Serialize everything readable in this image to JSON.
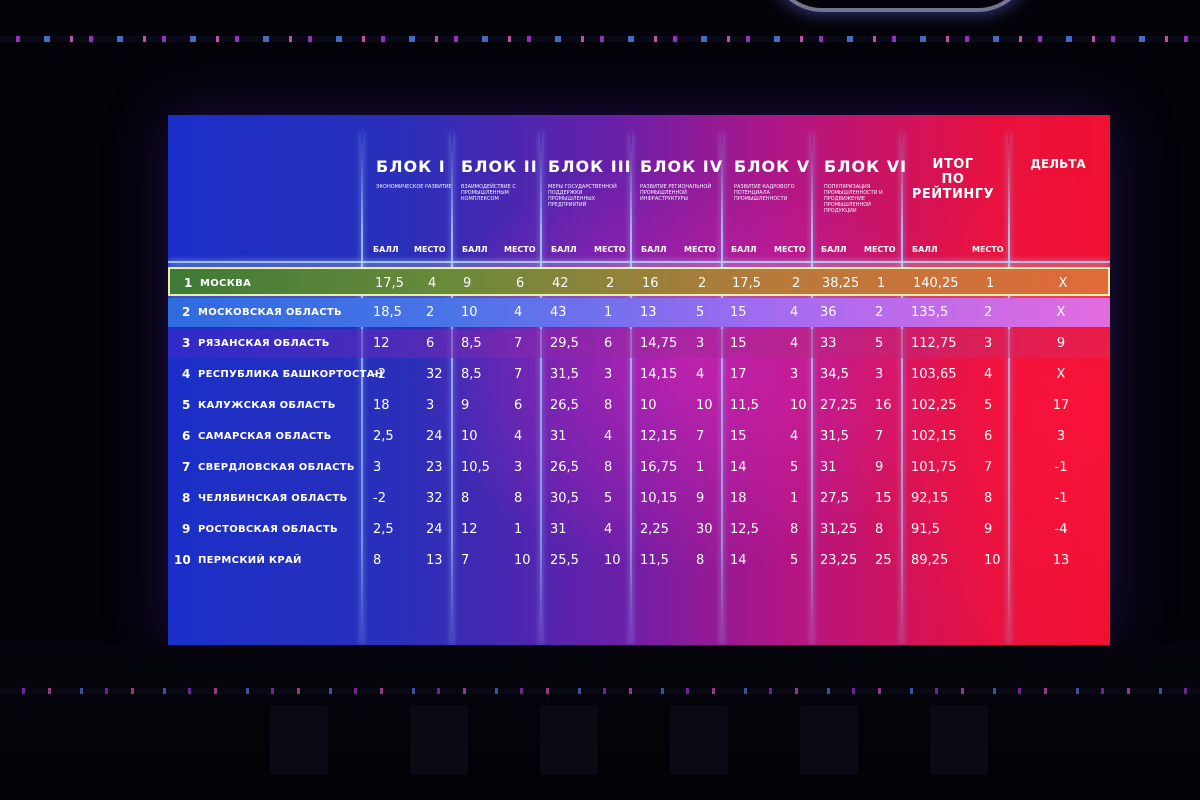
{
  "blocks": [
    {
      "title": "БЛОК I",
      "subtitle": "Экономическое развитие"
    },
    {
      "title": "БЛОК II",
      "subtitle": "Взаимодействие с промышленным комплексом"
    },
    {
      "title": "БЛОК III",
      "subtitle": "Меры государственной поддержки промышленных предприятий"
    },
    {
      "title": "БЛОК IV",
      "subtitle": "Развитие региональной промышленной инфраструктуры"
    },
    {
      "title": "БЛОК V",
      "subtitle": "Развитие кадрового потенциала промышленности"
    },
    {
      "title": "БЛОК VI",
      "subtitle": "Популяризация промышленности и продвижение промышленной продукции"
    }
  ],
  "total_header": [
    "ИТОГ",
    "ПО",
    "РЕЙТИНГУ"
  ],
  "delta_header": "ДЕЛЬТА",
  "sub_labels": {
    "score": "БАЛЛ",
    "place": "МЕСТО"
  },
  "rows": [
    {
      "rank": "1",
      "name": "Москва",
      "cells": [
        "17,5",
        "4",
        "9",
        "6",
        "42",
        "2",
        "16",
        "2",
        "17,5",
        "2",
        "38,25",
        "1",
        "140,25",
        "1"
      ],
      "delta": "X"
    },
    {
      "rank": "2",
      "name": "Московская область",
      "cells": [
        "18,5",
        "2",
        "10",
        "4",
        "43",
        "1",
        "13",
        "5",
        "15",
        "4",
        "36",
        "2",
        "135,5",
        "2"
      ],
      "delta": "X"
    },
    {
      "rank": "3",
      "name": "Рязанская область",
      "cells": [
        "12",
        "6",
        "8,5",
        "7",
        "29,5",
        "6",
        "14,75",
        "3",
        "15",
        "4",
        "33",
        "5",
        "112,75",
        "3"
      ],
      "delta": "9"
    },
    {
      "rank": "4",
      "name": "Республика Башкортостан",
      "cells": [
        "-2",
        "32",
        "8,5",
        "7",
        "31,5",
        "3",
        "14,15",
        "4",
        "17",
        "3",
        "34,5",
        "3",
        "103,65",
        "4"
      ],
      "delta": "X"
    },
    {
      "rank": "5",
      "name": "Калужская область",
      "cells": [
        "18",
        "3",
        "9",
        "6",
        "26,5",
        "8",
        "10",
        "10",
        "11,5",
        "10",
        "27,25",
        "16",
        "102,25",
        "5"
      ],
      "delta": "17"
    },
    {
      "rank": "6",
      "name": "Самарская область",
      "cells": [
        "2,5",
        "24",
        "10",
        "4",
        "31",
        "4",
        "12,15",
        "7",
        "15",
        "4",
        "31,5",
        "7",
        "102,15",
        "6"
      ],
      "delta": "3"
    },
    {
      "rank": "7",
      "name": "Свердловская область",
      "cells": [
        "3",
        "23",
        "10,5",
        "3",
        "26,5",
        "8",
        "16,75",
        "1",
        "14",
        "5",
        "31",
        "9",
        "101,75",
        "7"
      ],
      "delta": "-1"
    },
    {
      "rank": "8",
      "name": "Челябинская область",
      "cells": [
        "-2",
        "32",
        "8",
        "8",
        "30,5",
        "5",
        "10,15",
        "9",
        "18",
        "1",
        "27,5",
        "15",
        "92,15",
        "8"
      ],
      "delta": "-1"
    },
    {
      "rank": "9",
      "name": "Ростовская область",
      "cells": [
        "2,5",
        "24",
        "12",
        "1",
        "31",
        "4",
        "2,25",
        "30",
        "12,5",
        "8",
        "31,25",
        "8",
        "91,5",
        "9"
      ],
      "delta": "-4"
    },
    {
      "rank": "10",
      "name": "Пермский край",
      "cells": [
        "8",
        "13",
        "7",
        "10",
        "25,5",
        "10",
        "11,5",
        "8",
        "14",
        "5",
        "23,25",
        "25",
        "89,25",
        "10"
      ],
      "delta": "13"
    }
  ]
}
